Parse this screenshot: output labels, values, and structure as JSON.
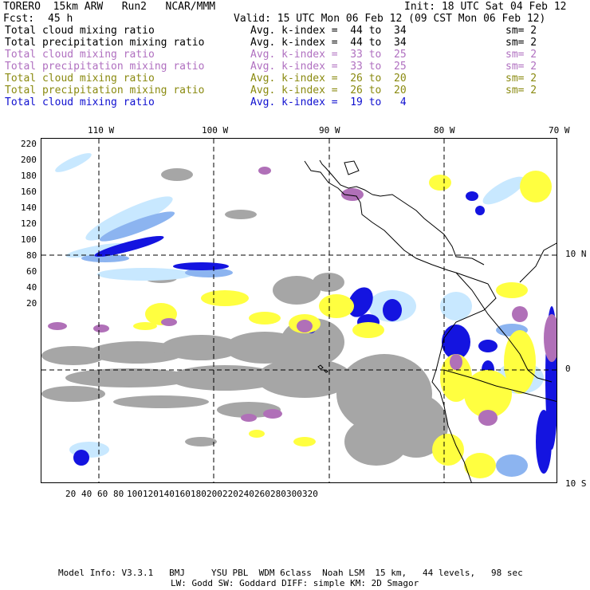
{
  "header": {
    "model": "TORERO  15km ARW   Run2   NCAR/MMM",
    "init": "Init: 18 UTC Sat 04 Feb 12",
    "fcst_label": "Fcst:",
    "fcst_value": "45 h",
    "valid": "Valid: 15 UTC Mon 06 Feb 12 (09 CST Mon 06 Feb 12)"
  },
  "legend": [
    {
      "name": "Total cloud mixing ratio",
      "kidx": "Avg. k-index =  44 to  34",
      "sm": "sm= 2",
      "color": "#000000"
    },
    {
      "name": "Total precipitation mixing ratio",
      "kidx": "Avg. k-index =  44 to  34",
      "sm": "sm= 2",
      "color": "#000000"
    },
    {
      "name": "Total cloud mixing ratio",
      "kidx": "Avg. k-index =  33 to  25",
      "sm": "sm= 2",
      "color": "#b070c0"
    },
    {
      "name": "Total precipitation mixing ratio",
      "kidx": "Avg. k-index =  33 to  25",
      "sm": "sm= 2",
      "color": "#b070c0"
    },
    {
      "name": "Total cloud mixing ratio",
      "kidx": "Avg. k-index =  26 to  20",
      "sm": "sm= 2",
      "color": "#8a8a10"
    },
    {
      "name": "Total precipitation mixing ratio",
      "kidx": "Avg. k-index =  26 to  20",
      "sm": "sm= 2",
      "color": "#8a8a10"
    },
    {
      "name": "Total cloud mixing ratio",
      "kidx": "Avg. k-index =  19 to   4",
      "sm": "",
      "color": "#1010d0"
    }
  ],
  "axes": {
    "top_lon": [
      "110 W",
      "100 W",
      "90 W",
      "80 W",
      "70 W"
    ],
    "right_lat": [
      "10 N",
      "0",
      "10 S"
    ],
    "x_grid": [
      "20",
      "40",
      "60",
      "80",
      "100",
      "120",
      "140",
      "160",
      "180",
      "200",
      "220",
      "240",
      "260",
      "280",
      "300",
      "320"
    ],
    "y_grid": [
      "220",
      "200",
      "180",
      "160",
      "140",
      "120",
      "100",
      "80",
      "60",
      "40",
      "20"
    ]
  },
  "colors": {
    "gray": "#a6a6a6",
    "purple": "#b070b8",
    "yellow": "#ffff40",
    "light_blue": "#c8e8ff",
    "mid_blue": "#8cb4f0",
    "blue": "#1414e0"
  },
  "footer": {
    "line1": "Model Info: V3.3.1   BMJ     YSU PBL  WDM 6class  Noah LSM  15 km,   44 levels,   98 sec",
    "line2": "LW: Godd SW: Goddard DIFF: simple KM: 2D Smagor"
  }
}
